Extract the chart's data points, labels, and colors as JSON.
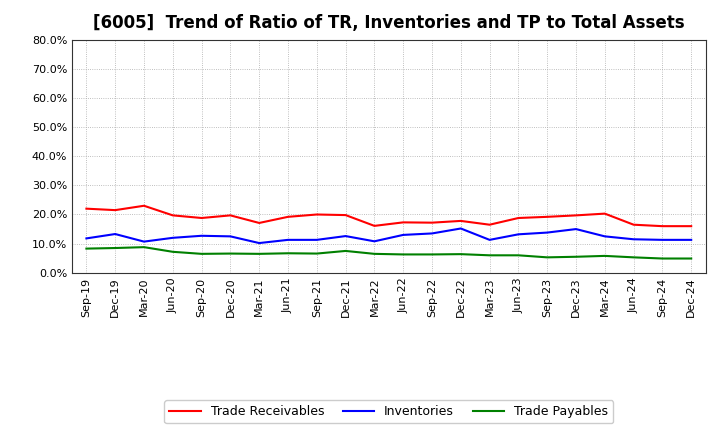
{
  "title": "[6005]  Trend of Ratio of TR, Inventories and TP to Total Assets",
  "x_labels": [
    "Sep-19",
    "Dec-19",
    "Mar-20",
    "Jun-20",
    "Sep-20",
    "Dec-20",
    "Mar-21",
    "Jun-21",
    "Sep-21",
    "Dec-21",
    "Mar-22",
    "Jun-22",
    "Sep-22",
    "Dec-22",
    "Mar-23",
    "Jun-23",
    "Sep-23",
    "Dec-23",
    "Mar-24",
    "Jun-24",
    "Sep-24",
    "Dec-24"
  ],
  "trade_receivables": [
    0.22,
    0.215,
    0.23,
    0.197,
    0.188,
    0.197,
    0.171,
    0.192,
    0.2,
    0.198,
    0.161,
    0.173,
    0.172,
    0.178,
    0.165,
    0.188,
    0.192,
    0.197,
    0.203,
    0.165,
    0.16,
    0.16
  ],
  "inventories": [
    0.118,
    0.133,
    0.107,
    0.12,
    0.127,
    0.125,
    0.102,
    0.113,
    0.113,
    0.126,
    0.108,
    0.13,
    0.135,
    0.152,
    0.113,
    0.132,
    0.138,
    0.15,
    0.125,
    0.115,
    0.113,
    0.113
  ],
  "trade_payables": [
    0.083,
    0.085,
    0.088,
    0.072,
    0.065,
    0.066,
    0.065,
    0.067,
    0.066,
    0.075,
    0.065,
    0.063,
    0.063,
    0.064,
    0.06,
    0.06,
    0.053,
    0.055,
    0.058,
    0.053,
    0.049,
    0.049
  ],
  "tr_color": "#ff0000",
  "inv_color": "#0000ff",
  "tp_color": "#008000",
  "ylim": [
    0.0,
    0.8
  ],
  "yticks": [
    0.0,
    0.1,
    0.2,
    0.3,
    0.4,
    0.5,
    0.6,
    0.7,
    0.8
  ],
  "background_color": "#ffffff",
  "grid_color": "#aaaaaa",
  "title_fontsize": 12,
  "tick_fontsize": 8,
  "legend_labels": [
    "Trade Receivables",
    "Inventories",
    "Trade Payables"
  ],
  "legend_fontsize": 9
}
